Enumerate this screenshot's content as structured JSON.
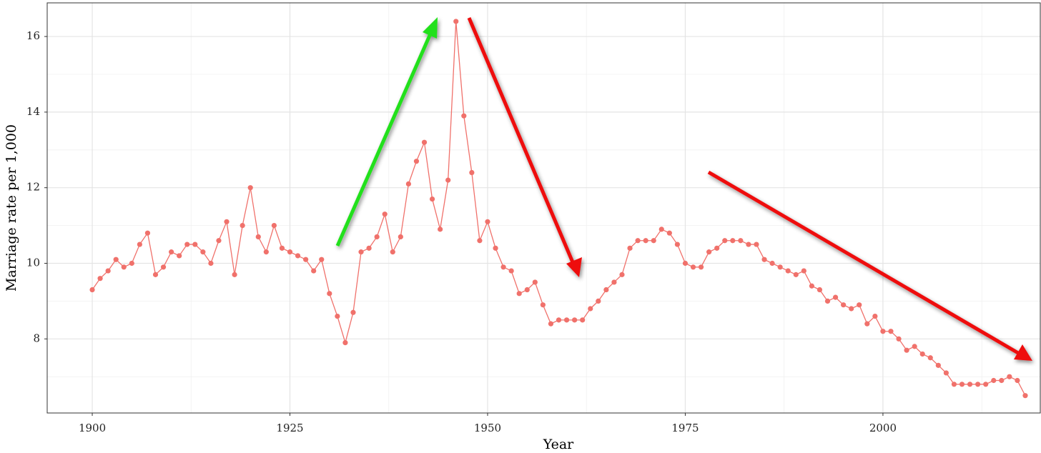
{
  "chart_data": {
    "type": "line",
    "x_label": "Year",
    "y_label": "Marriage rate per 1,000",
    "x": [
      1900,
      1901,
      1902,
      1903,
      1904,
      1905,
      1906,
      1907,
      1908,
      1909,
      1910,
      1911,
      1912,
      1913,
      1914,
      1915,
      1916,
      1917,
      1918,
      1919,
      1920,
      1921,
      1922,
      1923,
      1924,
      1925,
      1926,
      1927,
      1928,
      1929,
      1930,
      1931,
      1932,
      1933,
      1934,
      1935,
      1936,
      1937,
      1938,
      1939,
      1940,
      1941,
      1942,
      1943,
      1944,
      1945,
      1946,
      1947,
      1948,
      1949,
      1950,
      1951,
      1952,
      1953,
      1954,
      1955,
      1956,
      1957,
      1958,
      1959,
      1960,
      1961,
      1962,
      1963,
      1964,
      1965,
      1966,
      1967,
      1968,
      1969,
      1970,
      1971,
      1972,
      1973,
      1974,
      1975,
      1976,
      1977,
      1978,
      1979,
      1980,
      1981,
      1982,
      1983,
      1984,
      1985,
      1986,
      1987,
      1988,
      1989,
      1990,
      1991,
      1992,
      1993,
      1994,
      1995,
      1996,
      1997,
      1998,
      1999,
      2000,
      2001,
      2002,
      2003,
      2004,
      2005,
      2006,
      2007,
      2008,
      2009,
      2010,
      2011,
      2012,
      2013,
      2014,
      2015,
      2016,
      2017,
      2018
    ],
    "values": [
      9.3,
      9.6,
      9.8,
      10.1,
      9.9,
      10.0,
      10.5,
      10.8,
      9.7,
      9.9,
      10.3,
      10.2,
      10.5,
      10.5,
      10.3,
      10.0,
      10.6,
      11.1,
      9.7,
      11.0,
      12.0,
      10.7,
      10.3,
      11.0,
      10.4,
      10.3,
      10.2,
      10.1,
      9.8,
      10.1,
      9.2,
      8.6,
      7.9,
      8.7,
      10.3,
      10.4,
      10.7,
      11.3,
      10.3,
      10.7,
      12.1,
      12.7,
      13.2,
      11.7,
      10.9,
      12.2,
      16.4,
      13.9,
      12.4,
      10.6,
      11.1,
      10.4,
      9.9,
      9.8,
      9.2,
      9.3,
      9.5,
      8.9,
      8.4,
      8.5,
      8.5,
      8.5,
      8.5,
      8.8,
      9.0,
      9.3,
      9.5,
      9.7,
      10.4,
      10.6,
      10.6,
      10.6,
      10.9,
      10.8,
      10.5,
      10.0,
      9.9,
      9.9,
      10.3,
      10.4,
      10.6,
      10.6,
      10.6,
      10.5,
      10.5,
      10.1,
      10.0,
      9.9,
      9.8,
      9.7,
      9.8,
      9.4,
      9.3,
      9.0,
      9.1,
      8.9,
      8.8,
      8.9,
      8.4,
      8.6,
      8.2,
      8.2,
      8.0,
      7.7,
      7.8,
      7.6,
      7.5,
      7.3,
      7.1,
      6.8,
      6.8,
      6.8,
      6.8,
      6.8,
      6.9,
      6.9,
      7.0,
      6.9,
      6.5
    ],
    "color": "#f0716b",
    "xlim": [
      1894.3,
      2019.9
    ],
    "ylim": [
      6.04,
      16.89
    ],
    "xticks": [
      1900,
      1925,
      1950,
      1975,
      2000
    ],
    "yticks": [
      8,
      10,
      12,
      14,
      16
    ],
    "grid": true
  }
}
